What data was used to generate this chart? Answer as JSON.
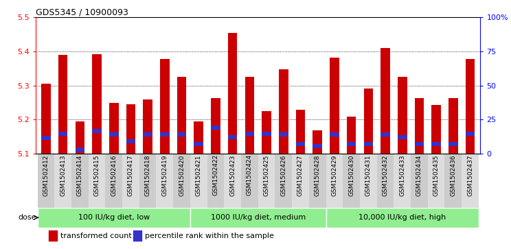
{
  "title": "GDS5345 / 10900093",
  "categories": [
    "GSM1502412",
    "GSM1502413",
    "GSM1502414",
    "GSM1502415",
    "GSM1502416",
    "GSM1502417",
    "GSM1502418",
    "GSM1502419",
    "GSM1502420",
    "GSM1502421",
    "GSM1502422",
    "GSM1502423",
    "GSM1502424",
    "GSM1502425",
    "GSM1502426",
    "GSM1502427",
    "GSM1502428",
    "GSM1502429",
    "GSM1502430",
    "GSM1502431",
    "GSM1502432",
    "GSM1502433",
    "GSM1502434",
    "GSM1502435",
    "GSM1502436",
    "GSM1502437"
  ],
  "bar_values": [
    5.305,
    5.39,
    5.195,
    5.392,
    5.248,
    5.245,
    5.258,
    5.378,
    5.325,
    5.195,
    5.262,
    5.455,
    5.325,
    5.225,
    5.348,
    5.228,
    5.168,
    5.382,
    5.208,
    5.29,
    5.41,
    5.325,
    5.262,
    5.242,
    5.262,
    5.378
  ],
  "percentile_values": [
    5.145,
    5.158,
    5.112,
    5.165,
    5.155,
    5.135,
    5.155,
    5.155,
    5.155,
    5.128,
    5.175,
    5.148,
    5.158,
    5.158,
    5.155,
    5.128,
    5.122,
    5.155,
    5.128,
    5.128,
    5.155,
    5.148,
    5.128,
    5.128,
    5.128,
    5.158
  ],
  "groups": [
    {
      "label": "100 IU/kg diet, low",
      "start": 0,
      "end": 9
    },
    {
      "label": "1000 IU/kg diet, medium",
      "start": 9,
      "end": 17
    },
    {
      "label": "10,000 IU/kg diet, high",
      "start": 17,
      "end": 26
    }
  ],
  "bar_color": "#CC0000",
  "percentile_color": "#3333CC",
  "bar_baseline": 5.1,
  "ylim_left": [
    5.1,
    5.5
  ],
  "ylim_right": [
    0,
    100
  ],
  "yticks_left": [
    5.1,
    5.2,
    5.3,
    5.4,
    5.5
  ],
  "yticks_right": [
    0,
    25,
    50,
    75,
    100
  ],
  "ytick_labels_right": [
    "0",
    "25",
    "50",
    "75",
    "100%"
  ],
  "group_bg_color": "#90EE90",
  "dose_label": "dose",
  "legend_items": [
    {
      "label": "transformed count",
      "color": "#CC0000"
    },
    {
      "label": "percentile rank within the sample",
      "color": "#3333CC"
    }
  ],
  "bar_width": 0.55,
  "grid_linestyle": "dotted"
}
